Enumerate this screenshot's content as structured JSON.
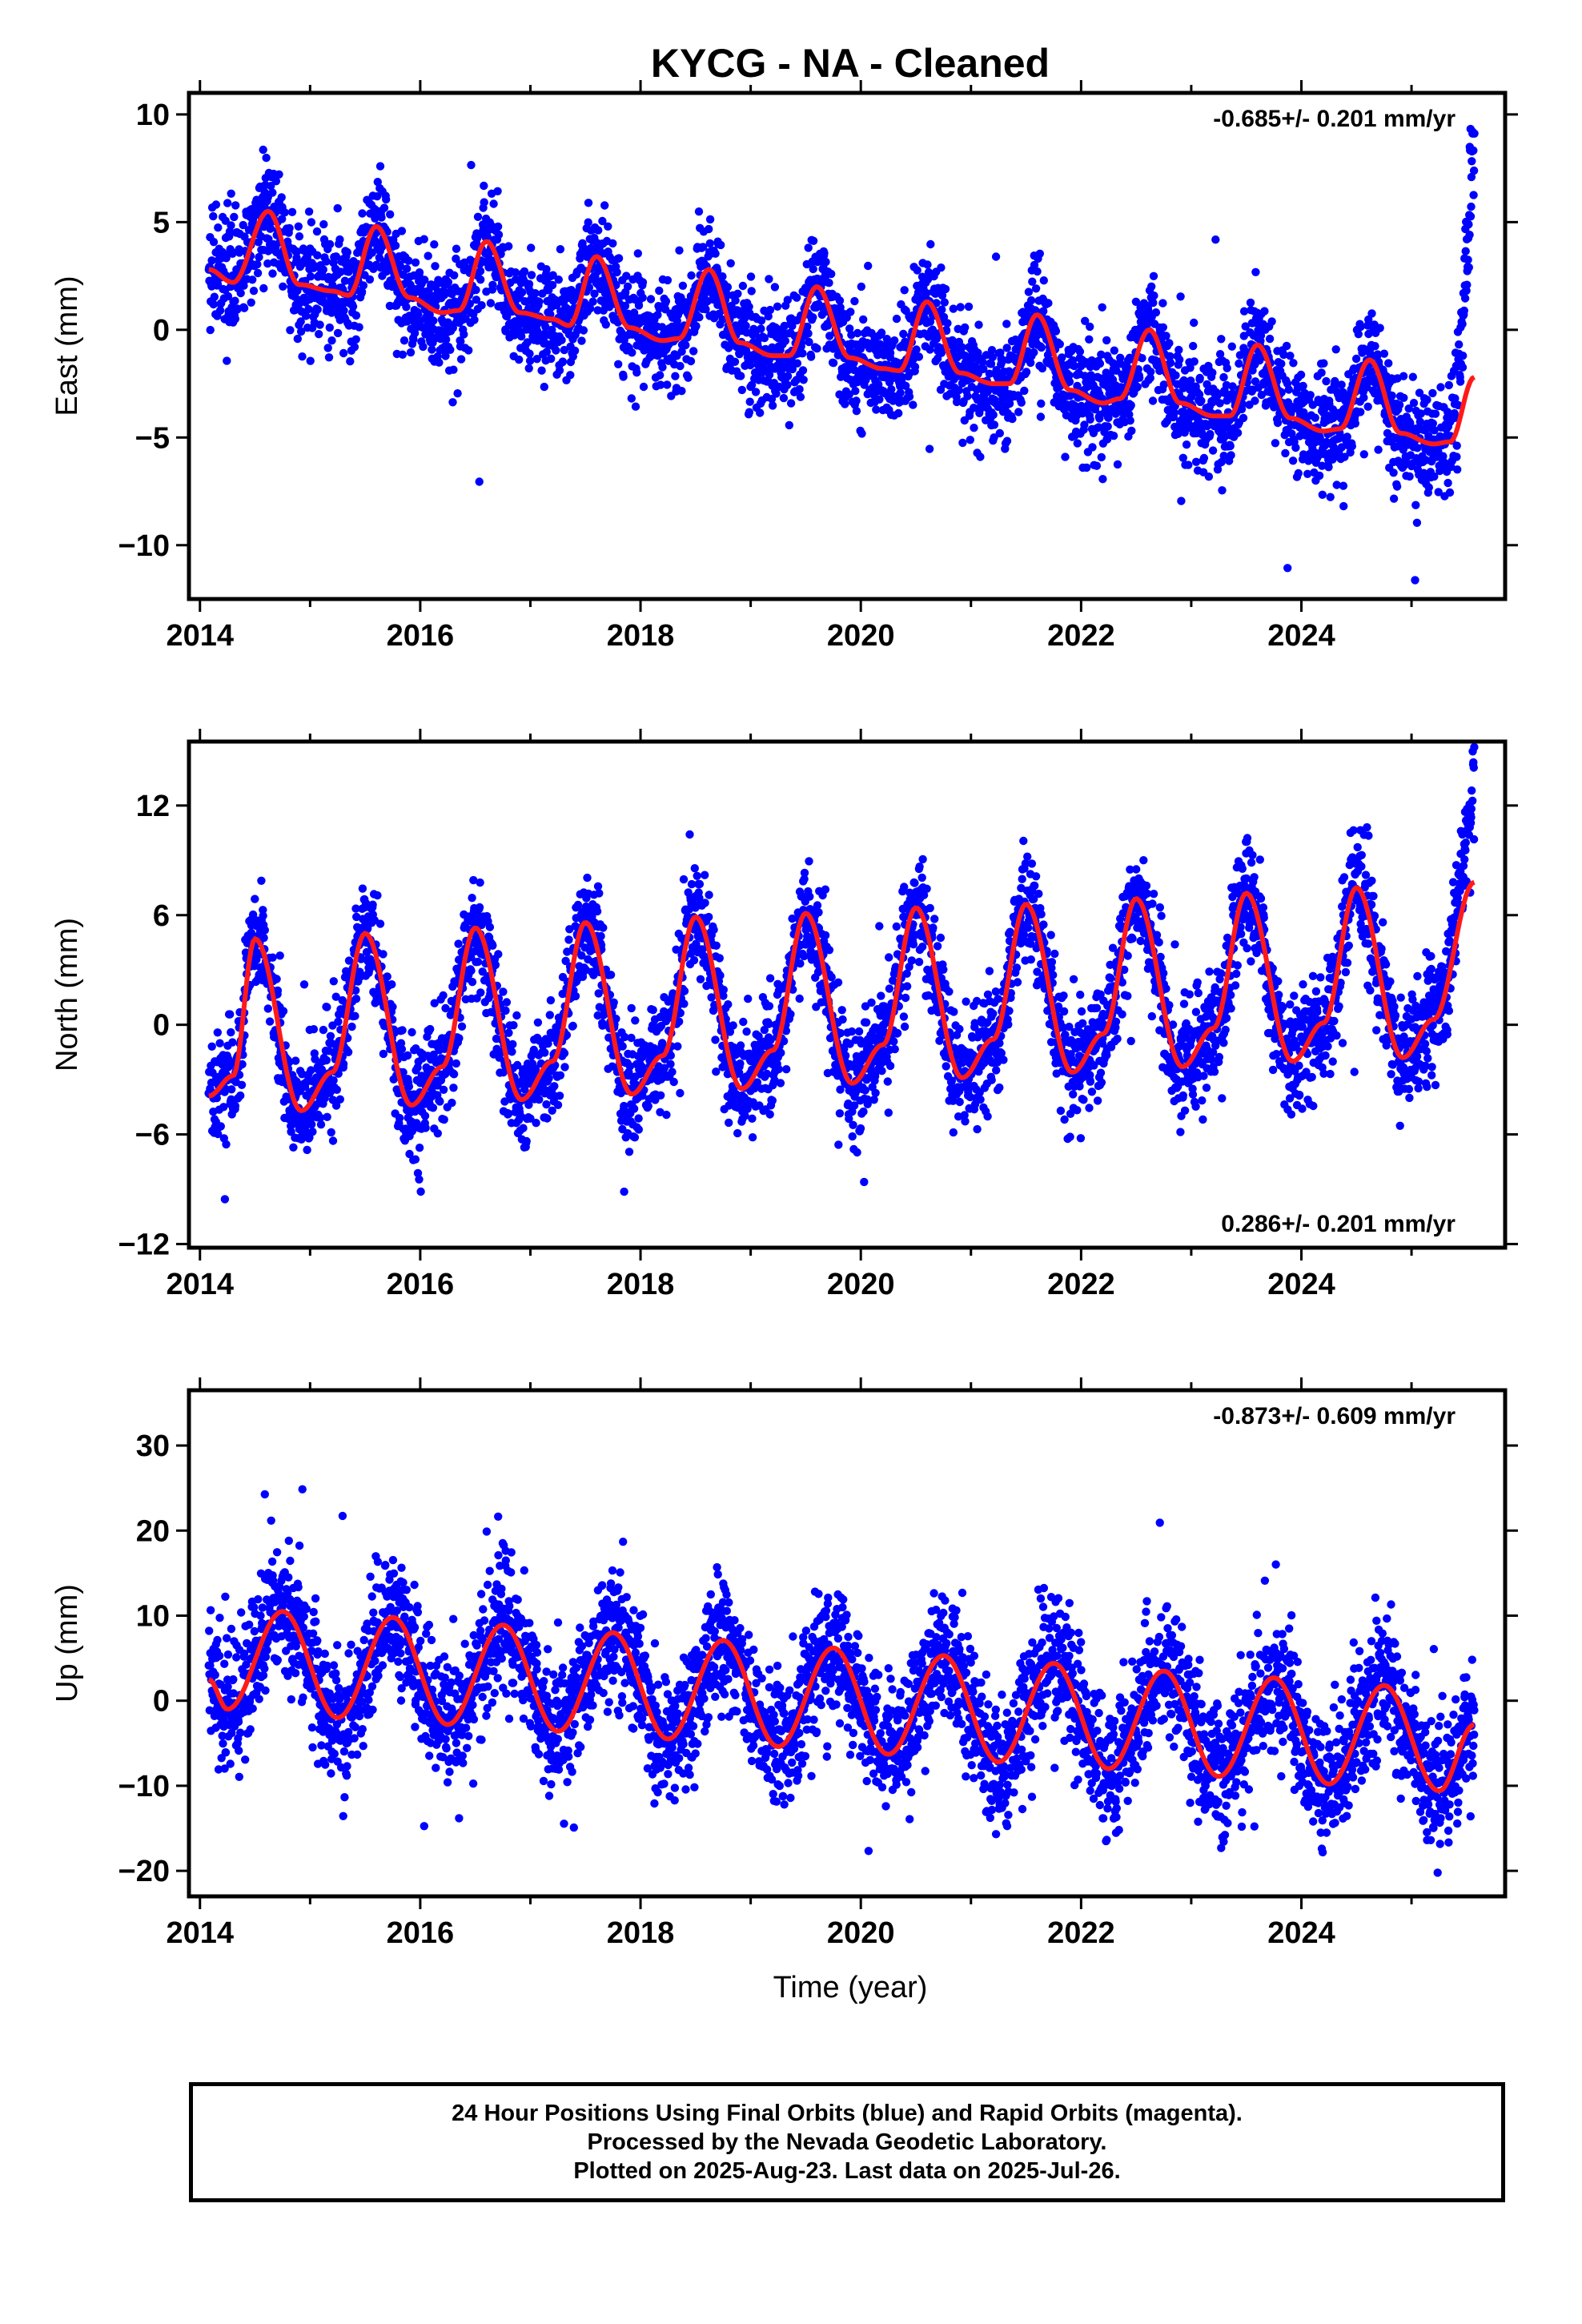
{
  "title": "KYCG  - NA - Cleaned",
  "colors": {
    "points": "#0000ff",
    "fit": "#ff1a1a",
    "frame": "#000000"
  },
  "xlabel": "Time (year)",
  "footer": {
    "line1": "24 Hour Positions Using Final Orbits (blue) and Rapid Orbits (magenta).",
    "line2": "Processed by the Nevada Geodetic Laboratory.",
    "line3": "Plotted on 2025-Aug-23. Last data on 2025-Jul-26."
  },
  "chart_data": [
    {
      "type": "scatter",
      "ylabel": "East (mm)",
      "rate_label": "-0.685+/- 0.201 mm/yr",
      "rate_position": "top-right",
      "xlim": [
        2013.9,
        2025.85
      ],
      "ylim": [
        -12.5,
        11
      ],
      "xticks": [
        2014,
        2016,
        2018,
        2020,
        2022,
        2024
      ],
      "xtick_labels": [
        "2014",
        "2016",
        "2018",
        "2020",
        "2022",
        "2024"
      ],
      "yticks": [
        -10,
        -5,
        0,
        5,
        10
      ],
      "ytick_labels": [
        "−10",
        "−5",
        "0",
        "5",
        "10"
      ],
      "series": [
        {
          "kind": "points",
          "x_range": [
            2014.08,
            2025.57
          ],
          "n": 4000,
          "model": {
            "offset": 2.1,
            "rate": -0.685,
            "amp": 1.8,
            "phase_peak": 0.62,
            "noise": 1.25,
            "late_rise_to": 10.5
          }
        },
        {
          "kind": "fit",
          "x": [
            2014.08,
            2014.3,
            2014.62,
            2014.9,
            2015.2,
            2015.35,
            2015.6,
            2015.9,
            2016.2,
            2016.35,
            2016.6,
            2016.9,
            2017.2,
            2017.35,
            2017.6,
            2017.9,
            2018.2,
            2018.35,
            2018.62,
            2018.9,
            2019.2,
            2019.35,
            2019.6,
            2019.9,
            2020.2,
            2020.35,
            2020.6,
            2020.9,
            2021.2,
            2021.35,
            2021.6,
            2021.9,
            2022.2,
            2022.35,
            2022.62,
            2022.9,
            2023.2,
            2023.35,
            2023.6,
            2023.9,
            2024.2,
            2024.35,
            2024.62,
            2024.9,
            2025.2,
            2025.35,
            2025.57
          ],
          "y": [
            2.8,
            2.2,
            5.5,
            2.1,
            1.8,
            1.6,
            4.8,
            1.5,
            0.8,
            0.9,
            4.1,
            0.8,
            0.5,
            0.2,
            3.4,
            0.1,
            -0.5,
            -0.4,
            2.8,
            -0.6,
            -1.2,
            -1.2,
            2.0,
            -1.3,
            -1.8,
            -1.9,
            1.3,
            -2.0,
            -2.5,
            -2.5,
            0.7,
            -2.8,
            -3.4,
            -3.2,
            0.0,
            -3.4,
            -4.0,
            -4.0,
            -0.7,
            -4.1,
            -4.7,
            -4.6,
            -1.4,
            -4.8,
            -5.3,
            -5.2,
            -2.2
          ]
        }
      ]
    },
    {
      "type": "scatter",
      "ylabel": "North (mm)",
      "rate_label": "0.286+/- 0.201 mm/yr",
      "rate_position": "bottom-right",
      "xlim": [
        2013.9,
        2025.85
      ],
      "ylim": [
        -12.2,
        15.5
      ],
      "xticks": [
        2014,
        2016,
        2018,
        2020,
        2022,
        2024
      ],
      "xtick_labels": [
        "2014",
        "2016",
        "2018",
        "2020",
        "2022",
        "2024"
      ],
      "yticks": [
        -12,
        -6,
        0,
        6,
        12
      ],
      "ytick_labels": [
        "−12",
        "−6",
        "0",
        "6",
        "12"
      ],
      "series": [
        {
          "kind": "points",
          "x_range": [
            2014.08,
            2025.57
          ],
          "n": 4000,
          "model": {
            "offset": 0.0,
            "rate": 0.286,
            "amp": 4.6,
            "phase_peak": 0.5,
            "noise": 1.5,
            "late_rise_to": 14.5
          }
        },
        {
          "kind": "fit",
          "x": [
            2014.08,
            2014.3,
            2014.5,
            2014.92,
            2015.2,
            2015.5,
            2015.92,
            2016.2,
            2016.5,
            2016.92,
            2017.2,
            2017.5,
            2017.92,
            2018.2,
            2018.5,
            2018.92,
            2019.2,
            2019.5,
            2019.92,
            2020.2,
            2020.5,
            2020.92,
            2021.2,
            2021.5,
            2021.92,
            2022.2,
            2022.5,
            2022.92,
            2023.2,
            2023.5,
            2023.92,
            2024.2,
            2024.5,
            2024.92,
            2025.2,
            2025.57
          ],
          "y": [
            -3.9,
            -2.8,
            4.7,
            -4.7,
            -2.6,
            5.0,
            -4.4,
            -2.3,
            5.3,
            -4.1,
            -2.0,
            5.6,
            -3.8,
            -1.7,
            5.9,
            -3.5,
            -1.4,
            6.1,
            -3.2,
            -1.1,
            6.4,
            -2.9,
            -0.8,
            6.6,
            -2.6,
            -0.5,
            6.9,
            -2.3,
            -0.2,
            7.2,
            -2.0,
            0.1,
            7.5,
            -1.8,
            0.3,
            7.8
          ]
        }
      ]
    },
    {
      "type": "scatter",
      "ylabel": "Up (mm)",
      "rate_label": "-0.873+/- 0.609 mm/yr",
      "rate_position": "top-right",
      "xlim": [
        2013.9,
        2025.85
      ],
      "ylim": [
        -23,
        36.5
      ],
      "xticks": [
        2014,
        2016,
        2018,
        2020,
        2022,
        2024
      ],
      "xtick_labels": [
        "2014",
        "2016",
        "2018",
        "2020",
        "2022",
        "2024"
      ],
      "yticks": [
        -20,
        -10,
        0,
        10,
        20,
        30
      ],
      "ytick_labels": [
        "−20",
        "−10",
        "0",
        "10",
        "20",
        "30"
      ],
      "series": [
        {
          "kind": "points",
          "x_range": [
            2014.08,
            2025.57
          ],
          "n": 4000,
          "model": {
            "offset": 4.5,
            "rate": -0.873,
            "amp": 6.0,
            "phase_peak": 0.75,
            "noise": 3.8,
            "late_rise_to": 0
          }
        },
        {
          "kind": "fit",
          "x": [
            2014.08,
            2014.25,
            2014.75,
            2015.25,
            2015.75,
            2016.25,
            2016.75,
            2017.25,
            2017.75,
            2018.25,
            2018.75,
            2019.25,
            2019.75,
            2020.25,
            2020.75,
            2021.25,
            2021.75,
            2022.25,
            2022.75,
            2023.25,
            2023.75,
            2024.25,
            2024.75,
            2025.25,
            2025.57
          ],
          "y": [
            2.5,
            -1.0,
            10.5,
            -2.0,
            9.8,
            -2.8,
            8.9,
            -3.6,
            8.0,
            -4.5,
            7.1,
            -5.4,
            6.2,
            -6.3,
            5.3,
            -7.2,
            4.4,
            -8.0,
            3.5,
            -8.9,
            2.7,
            -9.8,
            1.8,
            -10.6,
            -2.8
          ]
        }
      ]
    }
  ]
}
